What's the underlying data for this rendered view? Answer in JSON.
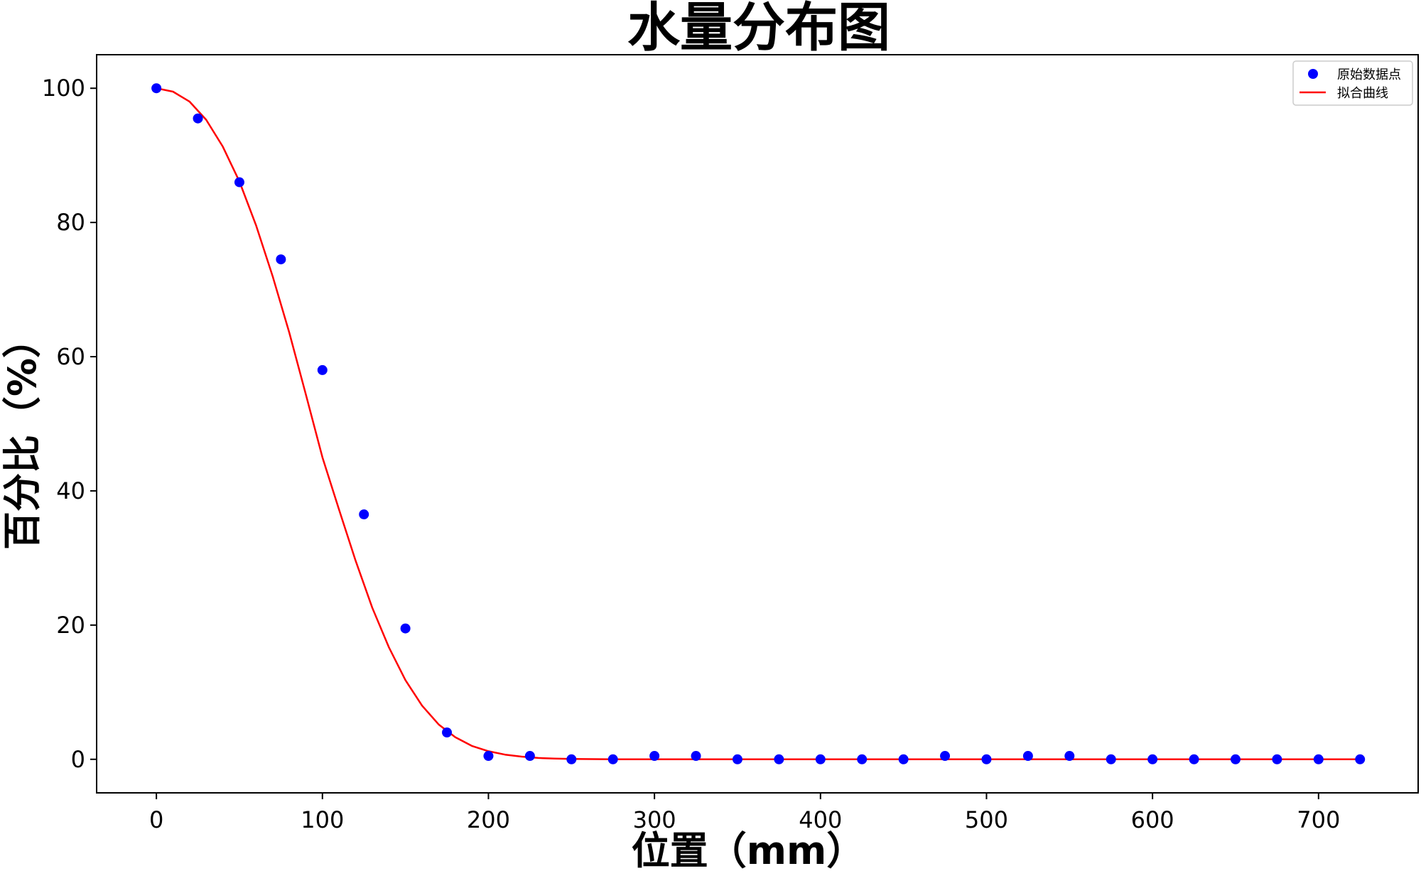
{
  "chart_data": {
    "type": "scatter",
    "title": "水量分布图",
    "xlabel": "位置（mm）",
    "ylabel": "百分比（%）",
    "xlim": [
      -36,
      760
    ],
    "ylim": [
      -5,
      105
    ],
    "xticks": [
      0,
      100,
      200,
      300,
      400,
      500,
      600,
      700
    ],
    "yticks": [
      0,
      20,
      40,
      60,
      80,
      100
    ],
    "grid": false,
    "legend_position": "top-right",
    "series": [
      {
        "name": "原始数据点",
        "kind": "scatter",
        "color": "#0000ff",
        "x": [
          0,
          25,
          50,
          75,
          100,
          125,
          150,
          175,
          200,
          225,
          250,
          275,
          300,
          325,
          350,
          375,
          400,
          425,
          450,
          475,
          500,
          525,
          550,
          575,
          600,
          625,
          650,
          675,
          700,
          725
        ],
        "y": [
          100,
          95.5,
          86,
          74.5,
          58,
          36.5,
          19.5,
          4,
          0.5,
          0.5,
          0,
          0,
          0.5,
          0.5,
          0,
          0,
          0,
          0,
          0,
          0.5,
          0,
          0.5,
          0.5,
          0,
          0,
          0,
          0,
          0,
          0,
          0
        ]
      },
      {
        "name": "拟合曲线",
        "kind": "line",
        "color": "#ff0000",
        "x": [
          0,
          10,
          20,
          30,
          40,
          50,
          60,
          70,
          80,
          90,
          100,
          110,
          120,
          130,
          140,
          150,
          160,
          170,
          180,
          190,
          200,
          210,
          220,
          230,
          240,
          250,
          275,
          300,
          400,
          500,
          600,
          700,
          725
        ],
        "y": [
          100,
          99.5,
          98.0,
          95.3,
          91.3,
          86.1,
          79.6,
          72.0,
          63.6,
          54.4,
          45.0,
          37.2,
          29.6,
          22.6,
          16.7,
          11.8,
          8.0,
          5.2,
          3.3,
          2.0,
          1.2,
          0.7,
          0.4,
          0.2,
          0.1,
          0.05,
          0,
          0,
          0,
          0,
          0,
          0,
          0
        ]
      }
    ]
  }
}
